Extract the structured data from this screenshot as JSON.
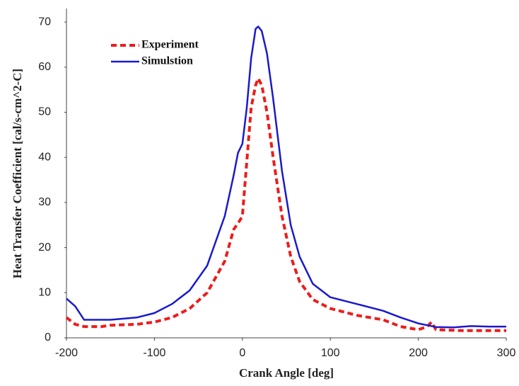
{
  "chart_data": {
    "type": "line",
    "xlabel": "Crank Angle [deg]",
    "ylabel": "Heat Transfer Coefficient [cal/s-cm^2-C]",
    "xlim": [
      -200,
      300
    ],
    "xticks": [
      -200,
      -100,
      0,
      100,
      200,
      300
    ],
    "ylim": [
      0,
      73
    ],
    "yticks": [
      0,
      10,
      20,
      30,
      40,
      50,
      60,
      70
    ],
    "legend": "upper left",
    "series": [
      {
        "name": "Experiment",
        "color": "#ee1c1c",
        "dash": true,
        "x": [
          -200,
          -190,
          -180,
          -160,
          -150,
          -120,
          -100,
          -80,
          -60,
          -40,
          -20,
          -10,
          -3,
          0,
          5,
          10,
          15,
          18,
          22,
          28,
          35,
          45,
          55,
          65,
          80,
          100,
          130,
          160,
          180,
          200,
          210,
          215,
          220,
          250,
          300
        ],
        "values": [
          4.5,
          3,
          2.5,
          2.5,
          2.8,
          3,
          3.5,
          4.5,
          6.5,
          10,
          17,
          24,
          26,
          27,
          39,
          51,
          56,
          57.5,
          56,
          50,
          40,
          27,
          18,
          12.5,
          8.5,
          6.5,
          5,
          4,
          2.5,
          1.8,
          2.5,
          3.5,
          1.8,
          1.6,
          1.6
        ]
      },
      {
        "name": "Simulstion",
        "color": "#1a1acc",
        "dash": false,
        "x": [
          -200,
          -190,
          -180,
          -150,
          -120,
          -100,
          -80,
          -60,
          -40,
          -20,
          -10,
          -5,
          0,
          5,
          10,
          15,
          18,
          22,
          28,
          35,
          45,
          55,
          65,
          80,
          100,
          130,
          160,
          180,
          200,
          220,
          240,
          260,
          280,
          300
        ],
        "values": [
          8.7,
          7,
          4,
          4,
          4.5,
          5.5,
          7.5,
          10.5,
          16,
          27,
          36,
          41,
          43,
          51,
          62,
          68.5,
          69,
          68,
          63,
          53,
          37,
          25,
          18,
          12,
          9,
          7.5,
          6,
          4.5,
          3.2,
          2.4,
          2.3,
          2.6,
          2.5,
          2.5
        ]
      }
    ]
  }
}
